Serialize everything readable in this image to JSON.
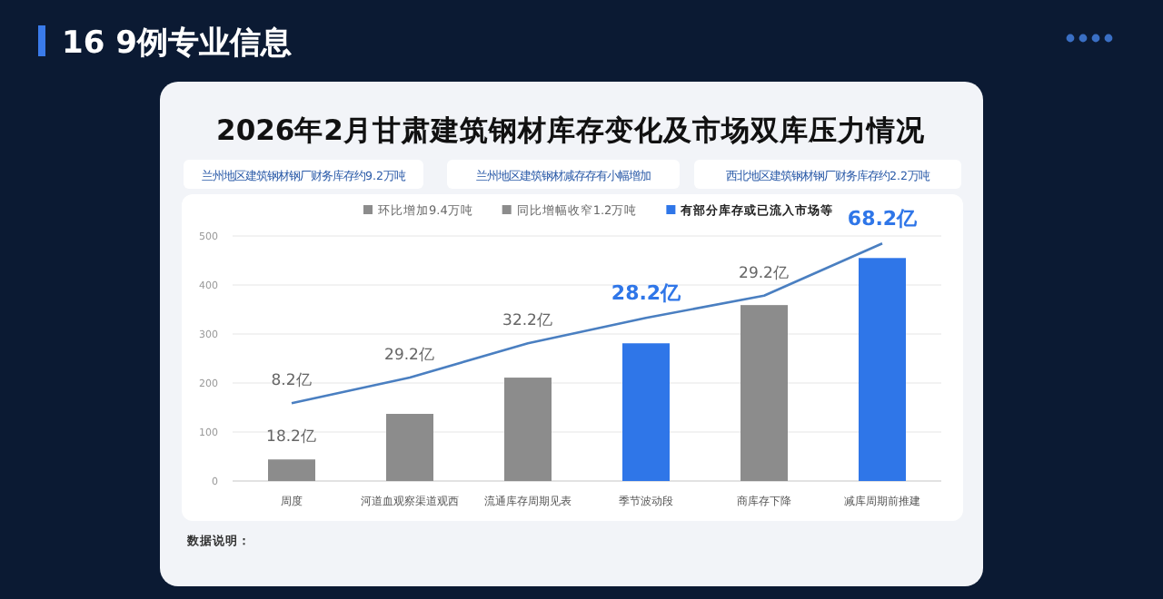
{
  "chart_data": {
    "type": "bar",
    "title": "2026年2月甘肃建筑钢材库存变化及市场双库压力情况",
    "subtitle": "16 9例专业信息",
    "annotations": [
      "兰州地区建筑钢材钢厂财务库存约9.2万吨",
      "兰州地区建筑钢材减存存有小幅增加",
      "西北地区建筑钢材钢厂财务库存约2.2万吨",
      "数据说明：",
      {
        "text": "18.2亿",
        "x": "周度",
        "y": 44
      },
      {
        "text": "8.2亿",
        "x": "周度",
        "y": 159
      },
      {
        "text": "29.2亿",
        "x": "河道血观察渠道观西",
        "y": 211
      },
      {
        "text": "32.2亿",
        "x": "流通库存周期见表",
        "y": 281
      },
      {
        "text": "28.2亿",
        "x": "季节波动段",
        "y": 333
      },
      {
        "text": "29.2亿",
        "x": "商库存下降",
        "y": 378
      },
      {
        "text": "68.2亿",
        "x": "减库周期前推建",
        "y": 485
      }
    ],
    "categories": [
      "周度",
      "河道血观察渠道观西",
      "流通库存周期见表",
      "季节波动段",
      "商库存下降",
      "减库周期前推建"
    ],
    "legend": "top",
    "grid": "y",
    "ylim": [
      0,
      500
    ],
    "yticks": [
      0,
      100,
      200,
      300,
      400,
      500
    ],
    "series": [
      {
        "name": "环比增加9.4万吨",
        "color": "#8c8c8c",
        "values": [
          44,
          137,
          null,
          null,
          null,
          null
        ]
      },
      {
        "name": "同比增幅收窄1.2万吨",
        "color": "#8c8c8c",
        "values": [
          null,
          null,
          211,
          null,
          359,
          null
        ]
      },
      {
        "name": "有部分库存或已流入市场等",
        "color": "#2f76e8",
        "values": [
          null,
          null,
          null,
          281,
          null,
          455
        ]
      },
      {
        "type": "line",
        "color": "#4a7fc1",
        "values": [
          159,
          211,
          281,
          333,
          378,
          485
        ]
      }
    ]
  }
}
